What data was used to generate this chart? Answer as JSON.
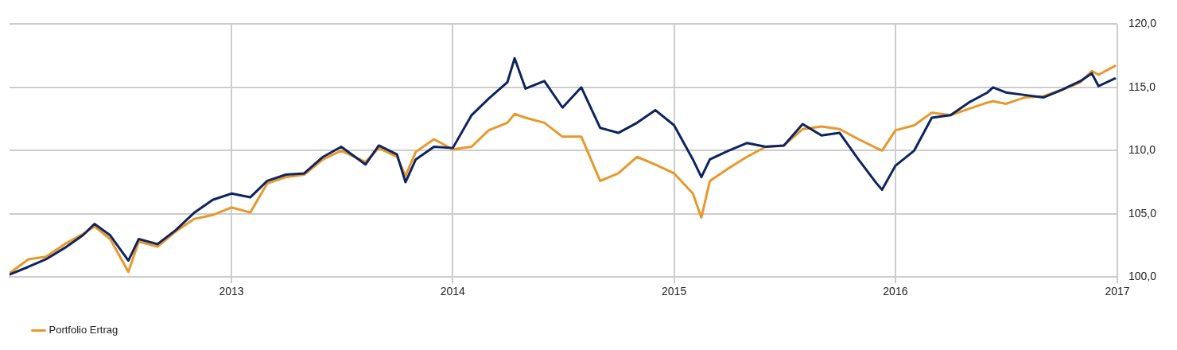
{
  "chart_data": {
    "type": "line",
    "x": [
      "2012-01-01",
      "2012-02-01",
      "2012-03-01",
      "2012-04-01",
      "2012-05-01",
      "2012-05-20",
      "2012-06-15",
      "2012-07-15",
      "2012-08-01",
      "2012-09-01",
      "2012-10-01",
      "2012-11-01",
      "2012-12-01",
      "2013-01-01",
      "2013-02-01",
      "2013-03-01",
      "2013-04-01",
      "2013-05-01",
      "2013-06-01",
      "2013-07-01",
      "2013-08-10",
      "2013-09-01",
      "2013-10-01",
      "2013-10-15",
      "2013-11-01",
      "2013-12-01",
      "2014-01-01",
      "2014-02-01",
      "2014-03-01",
      "2014-04-01",
      "2014-04-13",
      "2014-05-01",
      "2014-06-01",
      "2014-07-01",
      "2014-08-01",
      "2014-09-01",
      "2014-10-01",
      "2014-11-01",
      "2014-12-01",
      "2015-01-01",
      "2015-02-01",
      "2015-02-15",
      "2015-03-01",
      "2015-04-01",
      "2015-05-01",
      "2015-06-01",
      "2015-07-01",
      "2015-08-01",
      "2015-09-01",
      "2015-10-01",
      "2015-11-01",
      "2015-12-01",
      "2015-12-10",
      "2016-01-01",
      "2016-02-01",
      "2016-03-01",
      "2016-04-01",
      "2016-05-01",
      "2016-06-01",
      "2016-06-10",
      "2016-07-01",
      "2016-08-01",
      "2016-09-01",
      "2016-10-01",
      "2016-11-01",
      "2016-11-20",
      "2016-12-01",
      "2016-12-28"
    ],
    "series": [
      {
        "color": "#0d2461",
        "values": [
          100.2,
          100.8,
          101.4,
          102.3,
          103.3,
          104.2,
          103.3,
          101.3,
          103.0,
          102.6,
          103.7,
          105.1,
          106.1,
          106.6,
          106.3,
          107.6,
          108.1,
          108.2,
          109.5,
          110.3,
          108.9,
          110.4,
          109.7,
          107.5,
          109.3,
          110.3,
          110.2,
          112.8,
          114.1,
          115.4,
          117.3,
          114.9,
          115.5,
          113.4,
          115.0,
          111.8,
          111.4,
          112.2,
          113.2,
          112.0,
          109.3,
          107.9,
          109.3,
          110.0,
          110.6,
          110.3,
          110.4,
          112.1,
          111.2,
          111.4,
          109.3,
          107.4,
          106.9,
          108.8,
          110.0,
          112.6,
          112.8,
          113.8,
          114.6,
          115.0,
          114.6,
          114.4,
          114.2,
          114.8,
          115.5,
          116.1,
          115.1,
          115.7
        ]
      },
      {
        "name": "Portfolio Ertrag",
        "color": "#e8982a",
        "values": [
          100.3,
          101.4,
          101.6,
          102.6,
          103.4,
          104.0,
          103.0,
          100.4,
          102.8,
          102.4,
          103.6,
          104.6,
          104.9,
          105.5,
          105.1,
          107.4,
          107.9,
          108.1,
          109.3,
          110.0,
          109.1,
          110.2,
          109.5,
          108.0,
          109.9,
          110.9,
          110.1,
          110.3,
          111.6,
          112.2,
          112.9,
          112.6,
          112.2,
          111.1,
          111.1,
          107.6,
          108.2,
          109.5,
          108.9,
          108.2,
          106.6,
          104.7,
          107.6,
          108.6,
          109.5,
          110.3,
          110.4,
          111.7,
          111.9,
          111.7,
          110.9,
          110.2,
          110.0,
          111.6,
          112.0,
          113.0,
          112.8,
          113.3,
          113.8,
          113.9,
          113.7,
          114.2,
          114.3,
          114.8,
          115.4,
          116.3,
          116.0,
          116.7
        ]
      }
    ],
    "xlim": [
      "2012",
      "2017"
    ],
    "xticks": [
      "2013",
      "2014",
      "2015",
      "2016",
      "2017"
    ],
    "ylim": [
      100,
      120
    ],
    "yticks": [
      {
        "value": 100,
        "label": "100,0"
      },
      {
        "value": 105,
        "label": "105,0"
      },
      {
        "value": 110,
        "label": "110,0"
      },
      {
        "value": 115,
        "label": "115,0"
      },
      {
        "value": 120,
        "label": "120,0"
      }
    ],
    "grid": true,
    "legend": "bottom",
    "marker": "none",
    "line_style": "solid"
  }
}
